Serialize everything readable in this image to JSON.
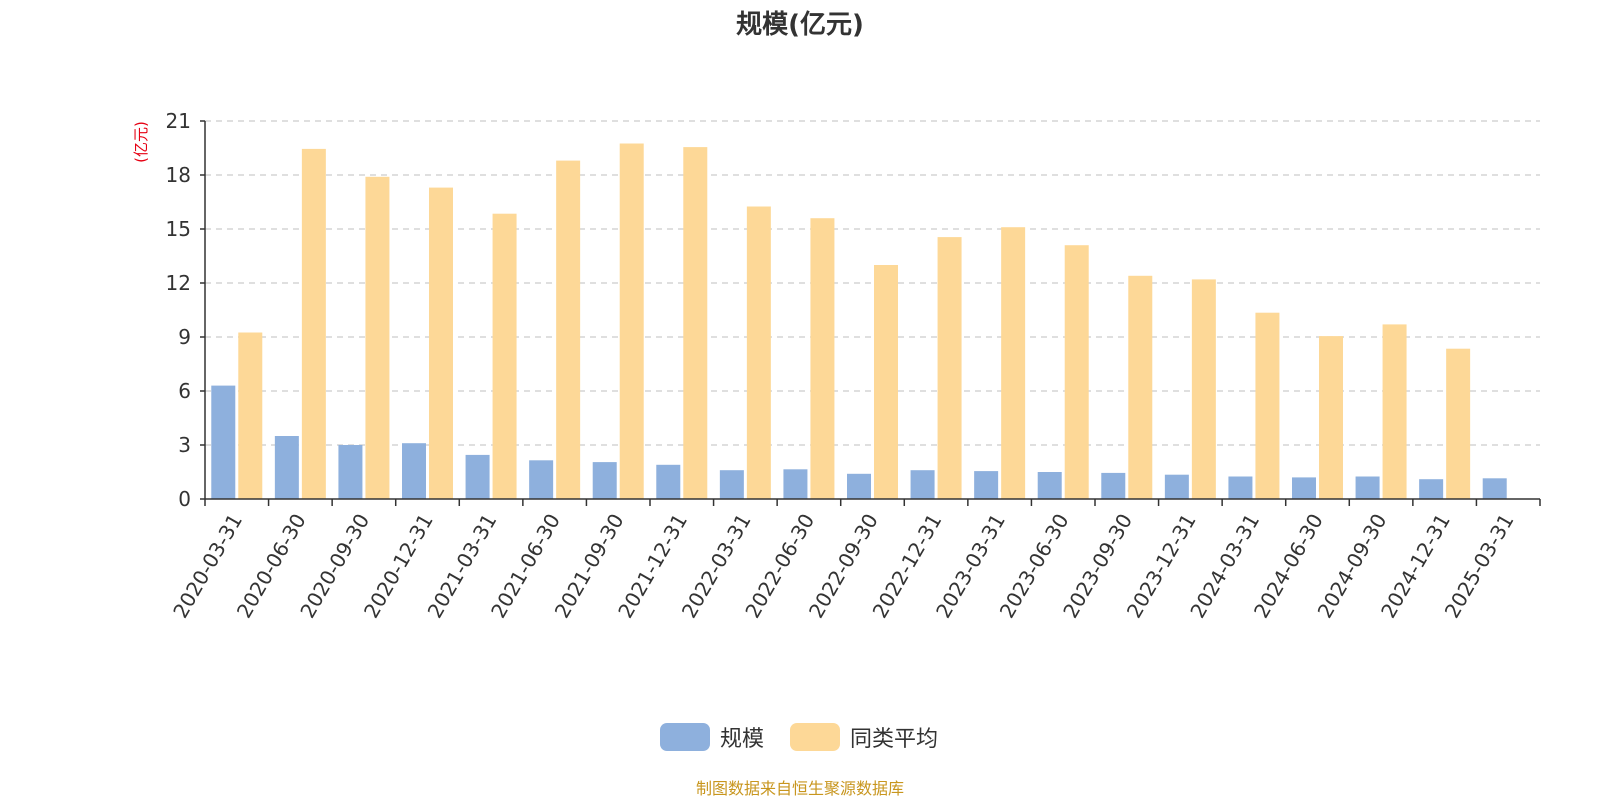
{
  "chart_data": {
    "type": "bar",
    "title": "规模(亿元)",
    "ylabel": "(亿元)",
    "ylim": [
      0,
      21
    ],
    "yticks": [
      0,
      3,
      6,
      9,
      12,
      15,
      18,
      21
    ],
    "grid": true,
    "legend_position": "bottom",
    "categories": [
      "2020-03-31",
      "2020-06-30",
      "2020-09-30",
      "2020-12-31",
      "2021-03-31",
      "2021-06-30",
      "2021-09-30",
      "2021-12-31",
      "2022-03-31",
      "2022-06-30",
      "2022-09-30",
      "2022-12-31",
      "2023-03-31",
      "2023-06-30",
      "2023-09-30",
      "2023-12-31",
      "2024-03-31",
      "2024-06-30",
      "2024-09-30",
      "2024-12-31",
      "2025-03-31"
    ],
    "series": [
      {
        "name": "规模",
        "color": "#8eb0dd",
        "values": [
          6.3,
          3.5,
          3.0,
          3.1,
          2.45,
          2.15,
          2.05,
          1.9,
          1.6,
          1.65,
          1.4,
          1.6,
          1.55,
          1.5,
          1.45,
          1.35,
          1.25,
          1.2,
          1.25,
          1.1,
          1.15
        ]
      },
      {
        "name": "同类平均",
        "color": "#fdd897",
        "values": [
          9.25,
          19.45,
          17.9,
          17.3,
          15.85,
          18.8,
          19.75,
          19.55,
          16.25,
          15.6,
          13.0,
          14.55,
          15.1,
          14.1,
          12.4,
          12.2,
          10.35,
          9.05,
          9.7,
          8.35,
          null
        ]
      }
    ]
  },
  "source_text": "制图数据来自恒生聚源数据库"
}
